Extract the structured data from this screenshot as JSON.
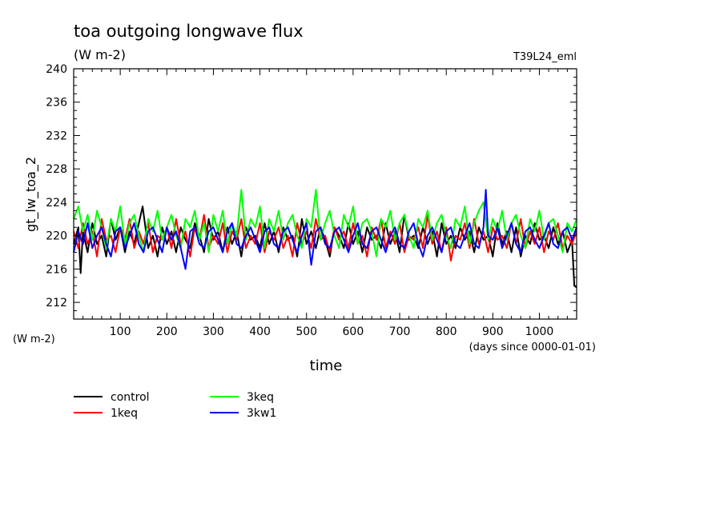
{
  "chart_data": {
    "type": "line",
    "title": "toa outgoing longwave flux",
    "subtitle": "(W m-2)",
    "run_label": "T39L24_eml",
    "ylabel": "gt_lw_toa_2",
    "yunit": "(W m-2)",
    "xlabel": "time",
    "xunit": "(days since 0000-01-01)",
    "xlim": [
      0,
      1080
    ],
    "ylim": [
      210,
      240
    ],
    "xticks": [
      100,
      200,
      300,
      400,
      500,
      600,
      700,
      800,
      900,
      1000
    ],
    "yticks": [
      212,
      216,
      220,
      224,
      228,
      232,
      236,
      240
    ],
    "grid": false,
    "legend_position": "bottom-left",
    "series": [
      {
        "name": "control",
        "color": "#000000",
        "x": [
          0,
          10,
          15,
          20,
          30,
          40,
          50,
          60,
          70,
          80,
          90,
          100,
          110,
          120,
          130,
          140,
          148,
          160,
          170,
          180,
          190,
          200,
          210,
          220,
          230,
          240,
          250,
          260,
          270,
          280,
          290,
          300,
          310,
          320,
          330,
          340,
          350,
          360,
          370,
          380,
          390,
          400,
          410,
          420,
          430,
          440,
          450,
          460,
          470,
          480,
          490,
          500,
          510,
          520,
          530,
          540,
          550,
          560,
          570,
          580,
          590,
          600,
          610,
          620,
          630,
          640,
          650,
          660,
          670,
          680,
          690,
          700,
          710,
          720,
          730,
          740,
          750,
          760,
          770,
          780,
          790,
          800,
          810,
          820,
          830,
          840,
          850,
          860,
          870,
          880,
          890,
          900,
          910,
          920,
          930,
          940,
          950,
          960,
          970,
          980,
          990,
          1000,
          1010,
          1020,
          1030,
          1040,
          1050,
          1060,
          1070,
          1075,
          1080
        ],
        "y": [
          219.0,
          221.0,
          215.5,
          220.5,
          218.0,
          221.5,
          219.0,
          220.0,
          217.5,
          222.0,
          219.5,
          221.0,
          218.0,
          220.5,
          219.0,
          221.5,
          223.5,
          218.5,
          220.0,
          217.5,
          221.0,
          219.0,
          220.5,
          218.0,
          221.0,
          219.5,
          218.5,
          221.5,
          220.0,
          218.0,
          222.0,
          219.5,
          220.5,
          218.0,
          221.0,
          219.0,
          220.5,
          217.5,
          221.0,
          219.5,
          220.0,
          218.5,
          221.5,
          219.0,
          220.5,
          218.0,
          221.0,
          219.5,
          220.0,
          217.5,
          222.0,
          219.0,
          220.5,
          218.5,
          221.0,
          219.5,
          217.5,
          221.0,
          220.0,
          218.5,
          221.5,
          219.0,
          220.5,
          218.0,
          221.0,
          219.5,
          220.0,
          218.5,
          221.5,
          219.0,
          220.5,
          218.0,
          222.5,
          219.5,
          220.0,
          218.5,
          221.0,
          219.0,
          220.5,
          217.5,
          221.5,
          219.0,
          220.0,
          218.5,
          221.0,
          219.5,
          220.5,
          218.0,
          221.0,
          219.5,
          220.0,
          217.5,
          221.5,
          219.0,
          220.5,
          218.0,
          221.0,
          217.5,
          220.0,
          219.0,
          221.5,
          219.5,
          220.0,
          218.5,
          221.0,
          219.0,
          220.5,
          218.0,
          219.5,
          214.0,
          213.8
        ]
      },
      {
        "name": "1keq",
        "color": "#ff0000",
        "x": [
          0,
          10,
          20,
          30,
          40,
          50,
          60,
          70,
          80,
          90,
          100,
          110,
          120,
          130,
          140,
          150,
          160,
          170,
          180,
          190,
          200,
          210,
          220,
          230,
          240,
          250,
          260,
          270,
          280,
          290,
          300,
          310,
          320,
          330,
          340,
          350,
          360,
          370,
          380,
          390,
          400,
          410,
          420,
          430,
          440,
          450,
          460,
          470,
          480,
          490,
          500,
          510,
          520,
          530,
          540,
          550,
          560,
          570,
          580,
          590,
          600,
          610,
          620,
          630,
          640,
          650,
          660,
          670,
          680,
          690,
          700,
          710,
          720,
          730,
          740,
          750,
          760,
          770,
          780,
          790,
          800,
          810,
          820,
          830,
          840,
          850,
          860,
          870,
          880,
          890,
          900,
          910,
          920,
          930,
          940,
          950,
          960,
          970,
          980,
          990,
          1000,
          1010,
          1020,
          1030,
          1040,
          1050,
          1060,
          1070,
          1080
        ],
        "y": [
          220.5,
          218.5,
          221.5,
          219.0,
          220.5,
          217.5,
          222.0,
          219.5,
          220.0,
          218.0,
          221.0,
          219.5,
          222.0,
          218.5,
          220.5,
          219.0,
          221.5,
          218.0,
          220.0,
          219.5,
          221.0,
          218.5,
          222.0,
          219.0,
          220.5,
          217.5,
          221.0,
          219.5,
          222.5,
          218.5,
          220.0,
          219.0,
          221.5,
          218.0,
          220.5,
          219.5,
          222.0,
          218.5,
          220.0,
          219.0,
          221.5,
          218.0,
          220.5,
          219.5,
          221.0,
          218.5,
          220.0,
          217.5,
          221.5,
          219.0,
          220.5,
          218.5,
          222.0,
          219.5,
          220.0,
          218.0,
          221.0,
          219.5,
          220.5,
          218.5,
          221.5,
          219.0,
          220.0,
          217.5,
          221.0,
          219.5,
          222.0,
          218.5,
          220.5,
          219.0,
          221.5,
          218.0,
          220.0,
          219.5,
          221.0,
          218.5,
          222.5,
          219.0,
          220.5,
          218.0,
          221.0,
          217.0,
          220.0,
          219.5,
          221.5,
          218.5,
          222.0,
          219.0,
          220.5,
          218.0,
          221.0,
          219.5,
          220.0,
          218.5,
          221.5,
          219.0,
          222.0,
          218.5,
          220.5,
          219.0,
          221.0,
          218.0,
          220.5,
          219.5,
          221.5,
          218.5,
          220.0,
          219.0,
          220.5
        ]
      },
      {
        "name": "3keq",
        "color": "#00ff00",
        "x": [
          0,
          10,
          20,
          30,
          40,
          50,
          60,
          70,
          80,
          90,
          100,
          110,
          120,
          130,
          140,
          150,
          160,
          170,
          180,
          190,
          200,
          210,
          220,
          230,
          240,
          250,
          260,
          270,
          280,
          290,
          300,
          310,
          320,
          330,
          340,
          350,
          360,
          370,
          380,
          390,
          400,
          410,
          420,
          430,
          440,
          450,
          460,
          470,
          480,
          490,
          500,
          510,
          520,
          530,
          540,
          550,
          560,
          570,
          580,
          590,
          600,
          610,
          620,
          630,
          640,
          650,
          660,
          670,
          680,
          690,
          700,
          710,
          720,
          730,
          740,
          750,
          760,
          770,
          780,
          790,
          800,
          810,
          820,
          830,
          840,
          850,
          860,
          870,
          880,
          890,
          900,
          910,
          920,
          930,
          940,
          950,
          960,
          970,
          980,
          990,
          1000,
          1010,
          1020,
          1030,
          1040,
          1050,
          1060,
          1070,
          1080
        ],
        "y": [
          222.0,
          223.5,
          220.5,
          222.5,
          219.5,
          223.0,
          221.0,
          218.5,
          222.0,
          220.5,
          223.5,
          219.0,
          221.5,
          222.5,
          220.0,
          218.0,
          222.0,
          220.5,
          223.0,
          219.5,
          221.0,
          222.5,
          220.0,
          218.5,
          222.0,
          221.0,
          223.0,
          219.5,
          221.5,
          218.0,
          222.5,
          220.5,
          223.0,
          219.0,
          221.5,
          220.0,
          225.5,
          219.5,
          222.0,
          221.0,
          223.5,
          218.5,
          222.0,
          220.5,
          223.0,
          219.5,
          221.5,
          222.5,
          220.0,
          218.5,
          222.0,
          221.0,
          225.5,
          219.5,
          221.5,
          223.0,
          220.0,
          218.5,
          222.5,
          221.0,
          223.5,
          219.0,
          221.5,
          222.0,
          220.5,
          217.5,
          222.0,
          221.0,
          223.0,
          219.5,
          221.5,
          222.5,
          220.0,
          218.5,
          222.0,
          221.0,
          223.0,
          219.5,
          221.5,
          222.5,
          220.0,
          218.5,
          222.0,
          221.0,
          223.5,
          219.0,
          221.5,
          223.0,
          224.0,
          219.5,
          222.0,
          220.5,
          223.0,
          219.5,
          221.5,
          222.5,
          220.0,
          218.5,
          222.0,
          220.5,
          223.0,
          219.5,
          221.5,
          222.0,
          220.0,
          218.0,
          221.5,
          220.5,
          222.0
        ]
      },
      {
        "name": "3kw1",
        "color": "#0000ff",
        "x": [
          0,
          10,
          20,
          30,
          40,
          50,
          60,
          70,
          80,
          90,
          100,
          110,
          120,
          130,
          140,
          150,
          160,
          170,
          180,
          190,
          200,
          210,
          220,
          230,
          240,
          250,
          260,
          270,
          280,
          290,
          300,
          310,
          320,
          330,
          340,
          350,
          360,
          370,
          380,
          390,
          400,
          410,
          420,
          430,
          440,
          450,
          460,
          470,
          480,
          490,
          500,
          510,
          520,
          530,
          540,
          550,
          560,
          570,
          580,
          590,
          600,
          610,
          620,
          630,
          640,
          650,
          660,
          670,
          680,
          690,
          700,
          710,
          720,
          730,
          740,
          750,
          760,
          770,
          780,
          790,
          800,
          810,
          820,
          830,
          840,
          850,
          860,
          870,
          880,
          885,
          890,
          900,
          910,
          920,
          930,
          940,
          950,
          960,
          970,
          980,
          990,
          1000,
          1010,
          1020,
          1030,
          1040,
          1050,
          1060,
          1070,
          1080
        ],
        "y": [
          218.0,
          220.5,
          219.0,
          221.5,
          218.5,
          220.0,
          221.0,
          219.0,
          217.5,
          220.5,
          221.0,
          218.5,
          220.0,
          221.5,
          219.0,
          218.0,
          220.5,
          221.0,
          219.5,
          218.0,
          221.0,
          219.5,
          220.5,
          218.5,
          216.0,
          220.5,
          221.0,
          219.0,
          218.5,
          220.5,
          221.0,
          219.5,
          218.0,
          220.5,
          221.5,
          219.0,
          218.5,
          220.0,
          221.0,
          219.5,
          218.0,
          220.5,
          221.0,
          219.0,
          218.5,
          220.5,
          221.0,
          219.5,
          218.0,
          220.0,
          221.5,
          216.5,
          220.5,
          221.0,
          219.0,
          218.5,
          220.5,
          221.0,
          219.5,
          218.0,
          220.0,
          221.5,
          219.0,
          218.5,
          220.5,
          221.0,
          219.5,
          218.0,
          220.0,
          221.0,
          219.0,
          218.5,
          220.5,
          221.5,
          219.0,
          217.5,
          220.0,
          221.0,
          219.5,
          218.0,
          220.5,
          221.0,
          219.0,
          218.5,
          220.0,
          221.5,
          219.0,
          218.5,
          221.0,
          225.5,
          220.0,
          219.5,
          221.0,
          218.5,
          220.0,
          221.5,
          219.0,
          218.0,
          220.5,
          221.0,
          219.5,
          218.5,
          220.0,
          221.5,
          219.0,
          218.5,
          220.5,
          221.0,
          219.5,
          221.0
        ]
      }
    ]
  }
}
